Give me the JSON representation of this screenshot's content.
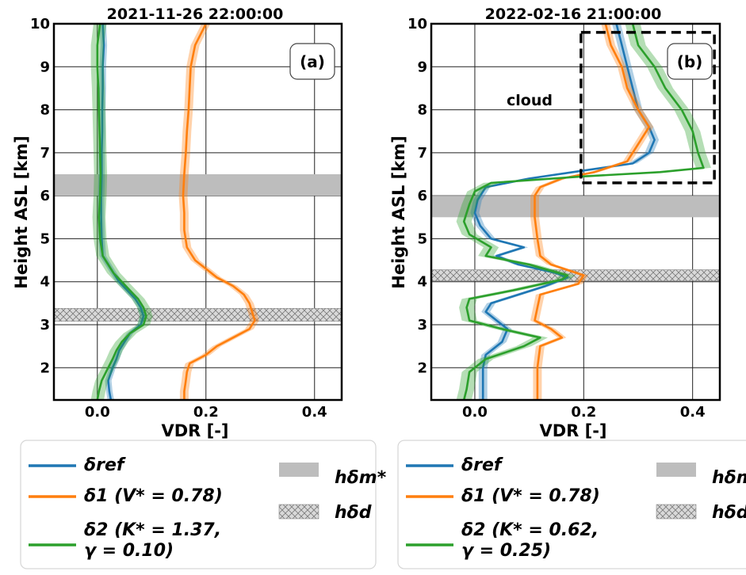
{
  "chart_data": [
    {
      "type": "line",
      "title": "2021-11-26 22:00:00",
      "panel_label": "(a)",
      "xlabel": "VDR [-]",
      "ylabel": "Height ASL [km]",
      "xlim": [
        -0.08,
        0.45
      ],
      "ylim": [
        1.25,
        10.0
      ],
      "xticks": [
        "0.0",
        "0.2",
        "0.4"
      ],
      "yticks": [
        "2",
        "3",
        "4",
        "5",
        "6",
        "7",
        "8",
        "9",
        "10"
      ],
      "grid": true,
      "shaded_band": {
        "label": "h_δm*",
        "y": [
          6.0,
          6.5
        ]
      },
      "hatched_band": {
        "label": "h_δd",
        "y": [
          3.08,
          3.38
        ]
      },
      "series": [
        {
          "name": "δ_ref",
          "color": "#1f77b4",
          "spread": 0.006,
          "points": [
            [
              0.025,
              1.25
            ],
            [
              0.022,
              1.45
            ],
            [
              0.02,
              1.7
            ],
            [
              0.028,
              2.0
            ],
            [
              0.035,
              2.2
            ],
            [
              0.04,
              2.4
            ],
            [
              0.05,
              2.6
            ],
            [
              0.06,
              2.8
            ],
            [
              0.08,
              3.0
            ],
            [
              0.085,
              3.2
            ],
            [
              0.08,
              3.4
            ],
            [
              0.07,
              3.6
            ],
            [
              0.055,
              3.8
            ],
            [
              0.04,
              4.0
            ],
            [
              0.03,
              4.2
            ],
            [
              0.02,
              4.4
            ],
            [
              0.01,
              4.6
            ],
            [
              0.008,
              5.0
            ],
            [
              0.007,
              5.5
            ],
            [
              0.007,
              6.0
            ],
            [
              0.008,
              6.5
            ],
            [
              0.008,
              7.0
            ],
            [
              0.009,
              7.5
            ],
            [
              0.009,
              8.0
            ],
            [
              0.01,
              8.5
            ],
            [
              0.01,
              9.0
            ],
            [
              0.012,
              9.5
            ],
            [
              0.01,
              10.0
            ]
          ]
        },
        {
          "name": "δ_1 (V* = 0.78)",
          "color": "#ff7f0e",
          "spread": 0.008,
          "points": [
            [
              0.16,
              1.25
            ],
            [
              0.16,
              1.45
            ],
            [
              0.163,
              1.7
            ],
            [
              0.165,
              1.9
            ],
            [
              0.17,
              2.1
            ],
            [
              0.2,
              2.3
            ],
            [
              0.22,
              2.5
            ],
            [
              0.25,
              2.7
            ],
            [
              0.28,
              2.9
            ],
            [
              0.29,
              3.1
            ],
            [
              0.285,
              3.3
            ],
            [
              0.28,
              3.5
            ],
            [
              0.27,
              3.7
            ],
            [
              0.25,
              3.9
            ],
            [
              0.22,
              4.1
            ],
            [
              0.2,
              4.3
            ],
            [
              0.18,
              4.5
            ],
            [
              0.165,
              4.8
            ],
            [
              0.16,
              5.2
            ],
            [
              0.16,
              5.6
            ],
            [
              0.158,
              6.0
            ],
            [
              0.16,
              6.5
            ],
            [
              0.163,
              7.0
            ],
            [
              0.165,
              7.5
            ],
            [
              0.168,
              8.0
            ],
            [
              0.17,
              8.5
            ],
            [
              0.172,
              9.0
            ],
            [
              0.18,
              9.5
            ],
            [
              0.2,
              10.0
            ]
          ]
        },
        {
          "name": "δ_2 (K* = 1.37, γ = 0.10)",
          "color": "#2ca02c",
          "spread": 0.012,
          "points": [
            [
              0.0,
              1.25
            ],
            [
              0.003,
              1.45
            ],
            [
              0.008,
              1.7
            ],
            [
              0.018,
              1.95
            ],
            [
              0.028,
              2.2
            ],
            [
              0.035,
              2.4
            ],
            [
              0.045,
              2.6
            ],
            [
              0.06,
              2.8
            ],
            [
              0.085,
              3.0
            ],
            [
              0.09,
              3.2
            ],
            [
              0.085,
              3.4
            ],
            [
              0.075,
              3.6
            ],
            [
              0.06,
              3.8
            ],
            [
              0.045,
              4.0
            ],
            [
              0.03,
              4.2
            ],
            [
              0.02,
              4.4
            ],
            [
              0.01,
              4.6
            ],
            [
              0.005,
              5.0
            ],
            [
              0.003,
              5.5
            ],
            [
              0.005,
              6.0
            ],
            [
              0.006,
              6.5
            ],
            [
              0.005,
              7.0
            ],
            [
              0.004,
              7.5
            ],
            [
              0.003,
              8.0
            ],
            [
              0.002,
              8.5
            ],
            [
              0.0,
              9.0
            ],
            [
              0.0,
              9.5
            ],
            [
              0.005,
              10.0
            ]
          ]
        }
      ]
    },
    {
      "type": "line",
      "title": "2022-02-16 21:00:00",
      "panel_label": "(b)",
      "annotation": "cloud",
      "xlabel": "VDR [-]",
      "ylabel": "Height ASL [km]",
      "xlim": [
        -0.08,
        0.45
      ],
      "ylim": [
        1.25,
        10.0
      ],
      "xticks": [
        "0.0",
        "0.2",
        "0.4"
      ],
      "yticks": [
        "2",
        "3",
        "4",
        "5",
        "6",
        "7",
        "8",
        "9",
        "10"
      ],
      "grid": true,
      "cloud_box": {
        "x": [
          0.195,
          0.44
        ],
        "y": [
          6.3,
          9.8
        ]
      },
      "shaded_band": {
        "label": "h_δm*",
        "y": [
          5.5,
          6.0
        ]
      },
      "hatched_band": {
        "label": "h_δd",
        "y": [
          4.02,
          4.28
        ]
      },
      "series": [
        {
          "name": "δ_ref",
          "color": "#1f77b4",
          "spread": 0.008,
          "points": [
            [
              0.015,
              1.25
            ],
            [
              0.015,
              1.5
            ],
            [
              0.015,
              2.0
            ],
            [
              0.02,
              2.3
            ],
            [
              0.05,
              2.6
            ],
            [
              0.06,
              2.9
            ],
            [
              0.04,
              3.1
            ],
            [
              0.02,
              3.3
            ],
            [
              0.03,
              3.5
            ],
            [
              0.08,
              3.7
            ],
            [
              0.13,
              3.9
            ],
            [
              0.17,
              4.1
            ],
            [
              0.15,
              4.2
            ],
            [
              0.08,
              4.4
            ],
            [
              0.04,
              4.6
            ],
            [
              0.09,
              4.8
            ],
            [
              0.03,
              5.0
            ],
            [
              0.01,
              5.3
            ],
            [
              0.0,
              5.6
            ],
            [
              0.005,
              5.9
            ],
            [
              0.02,
              6.2
            ],
            [
              0.1,
              6.4
            ],
            [
              0.18,
              6.55
            ],
            [
              0.29,
              6.75
            ],
            [
              0.32,
              7.0
            ],
            [
              0.33,
              7.3
            ],
            [
              0.32,
              7.6
            ],
            [
              0.3,
              8.0
            ],
            [
              0.29,
              8.5
            ],
            [
              0.28,
              9.0
            ],
            [
              0.27,
              9.5
            ],
            [
              0.26,
              10.0
            ]
          ]
        },
        {
          "name": "δ_1 (V* = 0.78)",
          "color": "#ff7f0e",
          "spread": 0.008,
          "points": [
            [
              0.115,
              1.25
            ],
            [
              0.115,
              1.5
            ],
            [
              0.115,
              2.0
            ],
            [
              0.12,
              2.5
            ],
            [
              0.16,
              2.7
            ],
            [
              0.14,
              2.9
            ],
            [
              0.11,
              3.1
            ],
            [
              0.115,
              3.4
            ],
            [
              0.12,
              3.7
            ],
            [
              0.19,
              3.95
            ],
            [
              0.2,
              4.15
            ],
            [
              0.14,
              4.4
            ],
            [
              0.12,
              4.6
            ],
            [
              0.115,
              5.0
            ],
            [
              0.11,
              5.5
            ],
            [
              0.11,
              6.0
            ],
            [
              0.12,
              6.2
            ],
            [
              0.16,
              6.4
            ],
            [
              0.22,
              6.55
            ],
            [
              0.28,
              6.8
            ],
            [
              0.3,
              7.2
            ],
            [
              0.32,
              7.6
            ],
            [
              0.3,
              8.0
            ],
            [
              0.28,
              8.5
            ],
            [
              0.27,
              9.0
            ],
            [
              0.25,
              9.5
            ],
            [
              0.24,
              10.0
            ]
          ]
        },
        {
          "name": "δ_2 (K* = 0.62, γ = 0.25)",
          "color": "#2ca02c",
          "spread": 0.014,
          "points": [
            [
              -0.02,
              1.25
            ],
            [
              -0.015,
              1.5
            ],
            [
              -0.01,
              1.9
            ],
            [
              0.02,
              2.2
            ],
            [
              0.09,
              2.5
            ],
            [
              0.12,
              2.7
            ],
            [
              0.05,
              2.9
            ],
            [
              -0.01,
              3.1
            ],
            [
              -0.015,
              3.4
            ],
            [
              -0.01,
              3.6
            ],
            [
              0.07,
              3.8
            ],
            [
              0.16,
              4.05
            ],
            [
              0.17,
              4.15
            ],
            [
              0.1,
              4.4
            ],
            [
              0.02,
              4.6
            ],
            [
              0.03,
              4.8
            ],
            [
              -0.01,
              5.1
            ],
            [
              -0.02,
              5.4
            ],
            [
              -0.01,
              5.8
            ],
            [
              0.0,
              6.1
            ],
            [
              0.03,
              6.3
            ],
            [
              0.2,
              6.45
            ],
            [
              0.34,
              6.55
            ],
            [
              0.42,
              6.65
            ],
            [
              0.41,
              7.0
            ],
            [
              0.4,
              7.5
            ],
            [
              0.38,
              8.0
            ],
            [
              0.35,
              8.5
            ],
            [
              0.33,
              9.0
            ],
            [
              0.3,
              9.5
            ],
            [
              0.29,
              10.0
            ]
          ]
        }
      ]
    }
  ],
  "legends": [
    {
      "entries": [
        {
          "color": "#1f77b4",
          "lines": [
            "δref"
          ]
        },
        {
          "color": "#ff7f0e",
          "lines": [
            "δ1 (V* = 0.78)"
          ]
        },
        {
          "color": "#2ca02c",
          "lines": [
            "δ2 (K* = 1.37,",
            "γ = 0.10)"
          ]
        }
      ],
      "band_entries": [
        {
          "type": "shaded",
          "label": "hδm*"
        },
        {
          "type": "hatched",
          "label": "hδd"
        }
      ]
    },
    {
      "entries": [
        {
          "color": "#1f77b4",
          "lines": [
            "δref"
          ]
        },
        {
          "color": "#ff7f0e",
          "lines": [
            "δ1 (V* = 0.78)"
          ]
        },
        {
          "color": "#2ca02c",
          "lines": [
            "δ2 (K* = 0.62,",
            "γ = 0.25)"
          ]
        }
      ],
      "band_entries": [
        {
          "type": "shaded",
          "label": "hδm*"
        },
        {
          "type": "hatched",
          "label": "hδd"
        }
      ]
    }
  ]
}
